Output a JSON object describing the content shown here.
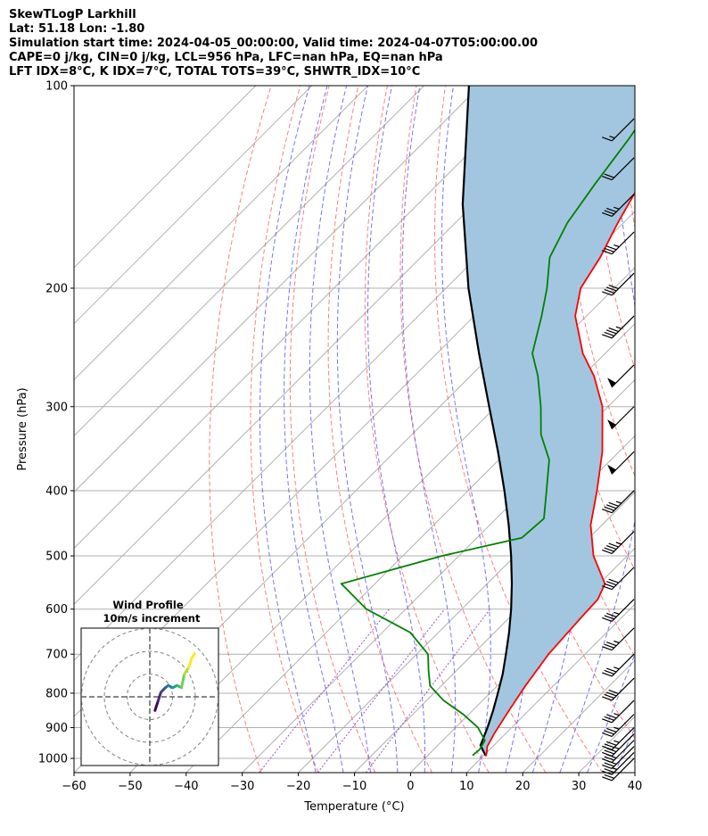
{
  "header": {
    "line1": "SkewTLogP Larkhill",
    "line2": "Lat: 51.18   Lon: -1.80",
    "line3": "Simulation start time: 2024-04-05_00:00:00, Valid time: 2024-04-07T05:00:00.00",
    "line4": "CAPE=0 j/kg, CIN=0 j/kg, LCL=956 hPa, LFC=nan hPa, EQ=nan hPa",
    "line5": "LFT IDX=8°C, K IDX=7°C, TOTAL TOTS=39°C, SHWTR_IDX=10°C"
  },
  "chart_data": {
    "type": "skewt",
    "xlabel": "Temperature (°C)",
    "ylabel": "Pressure (hPa)",
    "xlim": [
      -60,
      40
    ],
    "ylim": [
      1050,
      100
    ],
    "x_ticks": [
      -60,
      -50,
      -40,
      -30,
      -20,
      -10,
      0,
      10,
      20,
      30,
      40
    ],
    "x_tick_labels": [
      "−60",
      "−50",
      "−40",
      "−30",
      "−20",
      "−10",
      "0",
      "10",
      "20",
      "30",
      "40"
    ],
    "y_ticks": [
      1000,
      900,
      800,
      700,
      600,
      500,
      400,
      300,
      200,
      100
    ],
    "y_tick_labels": [
      "1000",
      "900",
      "800",
      "700",
      "600",
      "500",
      "400",
      "300",
      "200",
      "100"
    ],
    "colors": {
      "temperature": "#ff0000",
      "dewpoint": "#008000",
      "parcel": "#000000",
      "cape_fill": "#a3c6e0",
      "dry_adiabat": "#ff6666",
      "moist_adiabat": "#5a5aff",
      "mixing_ratio": "#9a4fd0",
      "isotherm": "#b0b0b0",
      "isobar": "#b0b0b0"
    },
    "temperature": {
      "p": [
        993,
        980,
        960,
        920,
        850,
        780,
        700,
        620,
        580,
        550,
        500,
        450,
        400,
        350,
        300,
        270,
        250,
        220,
        200,
        180,
        160,
        140,
        120,
        110,
        100
      ],
      "t": [
        10.5,
        10,
        9,
        8,
        6.5,
        5,
        3.5,
        2.8,
        2.5,
        1,
        -6,
        -12,
        -17,
        -23,
        -31,
        -38,
        -44,
        -52,
        -56,
        -58,
        -61,
        -64,
        -66,
        -67,
        -69
      ]
    },
    "dewpoint": {
      "p": [
        990,
        970,
        940,
        900,
        860,
        820,
        780,
        740,
        700,
        650,
        600,
        550,
        500,
        470,
        440,
        400,
        360,
        330,
        300,
        270,
        250,
        220,
        200,
        180,
        160,
        140,
        120,
        100
      ],
      "td": [
        8,
        8.2,
        7.5,
        4,
        -1,
        -7,
        -12,
        -15,
        -18,
        -25,
        -37,
        -46,
        -33,
        -22,
        -21.5,
        -26,
        -31,
        -37,
        -42,
        -48,
        -53,
        -58,
        -62,
        -67,
        -70,
        -72,
        -74,
        -77
      ]
    },
    "parcel": {
      "p": [
        990,
        956,
        900,
        850,
        800,
        750,
        700,
        650,
        600,
        550,
        500,
        450,
        400,
        350,
        300,
        250,
        200,
        150,
        100
      ],
      "t": [
        10.3,
        7.6,
        5.7,
        3.7,
        1.4,
        -1.1,
        -4.1,
        -7.4,
        -11.2,
        -15.6,
        -20.7,
        -26.6,
        -33.5,
        -41.6,
        -51.2,
        -62.5,
        -76,
        -92,
        -112
      ]
    },
    "wind_barbs": {
      "p": [
        1000,
        980,
        960,
        940,
        920,
        900,
        860,
        820,
        760,
        700,
        640,
        580,
        520,
        460,
        400,
        350,
        300,
        260,
        220,
        190,
        165,
        145,
        128,
        112
      ],
      "speed_kt": [
        20,
        25,
        30,
        30,
        35,
        35,
        35,
        35,
        40,
        35,
        35,
        35,
        40,
        45,
        45,
        50,
        50,
        50,
        45,
        40,
        35,
        35,
        20,
        15
      ]
    },
    "inset": {
      "title_line1": "Wind Profile",
      "title_line2": "10m/s increment",
      "hodograph_u": [
        -23,
        -21,
        -19,
        -16,
        -14,
        -11,
        -8,
        -5,
        -3,
        0,
        2,
        4
      ],
      "hodograph_v": [
        -6,
        -2,
        2,
        4,
        5,
        4,
        5,
        4,
        10,
        13,
        17,
        19
      ]
    }
  }
}
